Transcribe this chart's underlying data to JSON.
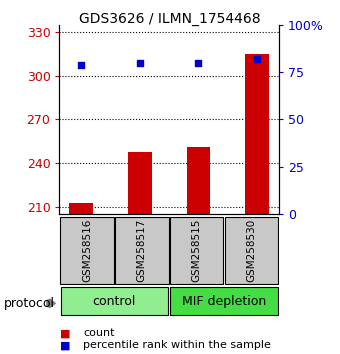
{
  "title": "GDS3626 / ILMN_1754468",
  "samples": [
    "GSM258516",
    "GSM258517",
    "GSM258515",
    "GSM258530"
  ],
  "counts": [
    213,
    248,
    251,
    315
  ],
  "percentile_ranks": [
    79,
    80,
    80,
    82
  ],
  "group_positions": [
    {
      "label": "control",
      "start": 0,
      "end": 2,
      "color": "#90EE90"
    },
    {
      "label": "MIF depletion",
      "start": 2,
      "end": 4,
      "color": "#44DD44"
    }
  ],
  "ylim_left": [
    205,
    335
  ],
  "ylim_right": [
    0,
    100
  ],
  "yticks_left": [
    210,
    240,
    270,
    300,
    330
  ],
  "yticks_right": [
    0,
    25,
    50,
    75,
    100
  ],
  "ytick_labels_right": [
    "0",
    "25",
    "50",
    "75",
    "100%"
  ],
  "bar_color": "#CC0000",
  "dot_color": "#0000CC",
  "bar_width": 0.4,
  "grid_color": "#000000",
  "sample_box_color": "#C8C8C8",
  "legend_count_color": "#CC0000",
  "legend_pct_color": "#0000CC",
  "title_fontsize": 10,
  "tick_fontsize": 9,
  "legend_fontsize": 8,
  "sample_fontsize": 7.5,
  "group_fontsize": 9
}
